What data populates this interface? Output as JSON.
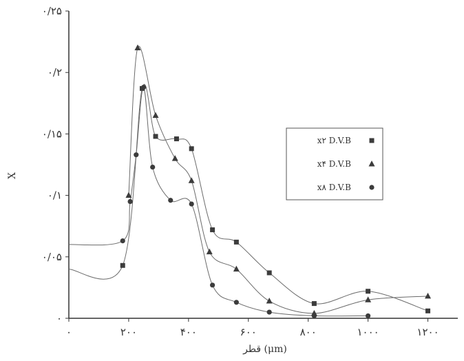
{
  "chart_data": {
    "type": "line",
    "xlabel": "قطر (μm)",
    "ylabel": "X",
    "xlim": [
      0,
      1300
    ],
    "ylim": [
      0,
      0.25
    ],
    "grid": false,
    "legend_position": "right",
    "x_ticks": [
      {
        "value": 0,
        "label": "۰"
      },
      {
        "value": 200,
        "label": "۲۰۰"
      },
      {
        "value": 400,
        "label": "۴۰۰"
      },
      {
        "value": 600,
        "label": "۶۰۰"
      },
      {
        "value": 800,
        "label": "۸۰۰"
      },
      {
        "value": 1000,
        "label": "۱۰۰۰"
      },
      {
        "value": 1200,
        "label": "۱۲۰۰"
      }
    ],
    "y_ticks": [
      {
        "value": 0,
        "label": "۰"
      },
      {
        "value": 0.05,
        "label": "۰/۰۵"
      },
      {
        "value": 0.1,
        "label": "۰/۱"
      },
      {
        "value": 0.15,
        "label": "۰/۱۵"
      },
      {
        "value": 0.2,
        "label": "۰/۲"
      },
      {
        "value": 0.25,
        "label": "۰/۲۵"
      }
    ],
    "series": [
      {
        "name": "x۲ D.V.B",
        "marker": "square",
        "x": [
          0,
          180,
          245,
          290,
          360,
          410,
          480,
          560,
          670,
          820,
          1000,
          1200
        ],
        "y": [
          0.04,
          0.043,
          0.187,
          0.148,
          0.146,
          0.138,
          0.072,
          0.062,
          0.037,
          0.012,
          0.022,
          0.006
        ]
      },
      {
        "name": "x۴ D.V.B",
        "marker": "triangle",
        "x": [
          200,
          230,
          290,
          355,
          410,
          470,
          560,
          670,
          820,
          1000,
          1200
        ],
        "y": [
          0.1,
          0.22,
          0.165,
          0.13,
          0.112,
          0.054,
          0.04,
          0.014,
          0.004,
          0.015,
          0.018
        ]
      },
      {
        "name": "x۸ D.V.B",
        "marker": "circle",
        "x": [
          0,
          180,
          205,
          225,
          250,
          280,
          340,
          410,
          480,
          560,
          670,
          820,
          1000
        ],
        "y": [
          0.06,
          0.063,
          0.095,
          0.133,
          0.188,
          0.123,
          0.096,
          0.093,
          0.027,
          0.013,
          0.005,
          0.002,
          0.002
        ]
      }
    ]
  }
}
